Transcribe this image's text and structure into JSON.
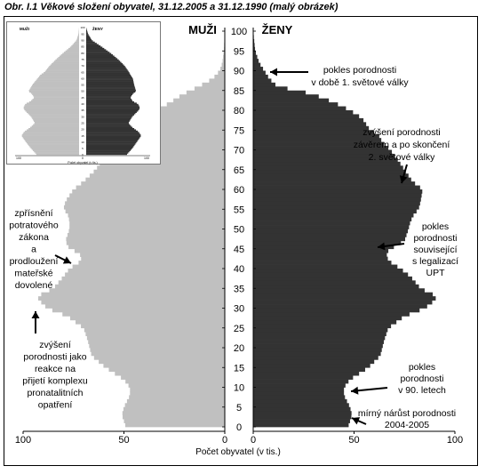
{
  "title": "Obr. I.1 Věkové složení obyvatel, 31.12.2005 a 31.12.1990 (malý obrázek)",
  "colors": {
    "men": "#c0c0c0",
    "women": "#333333",
    "text": "#000000"
  },
  "chart_data": [
    {
      "type": "population-pyramid",
      "title": "",
      "left_group": "MUŽI",
      "right_group": "ŽENY",
      "xlabel": "Počet obyvatel (v tis.)",
      "x_ticks_left": [
        100,
        50,
        0
      ],
      "x_ticks_right": [
        0,
        50,
        100
      ],
      "xlim": [
        0,
        100
      ],
      "y_ticks": [
        0,
        5,
        10,
        15,
        20,
        25,
        30,
        35,
        40,
        45,
        50,
        55,
        60,
        65,
        70,
        75,
        80,
        85,
        90,
        95,
        100
      ],
      "ylim": [
        0,
        100
      ],
      "age_anchors": [
        0,
        3,
        5,
        8,
        10,
        12,
        15,
        18,
        22,
        25,
        28,
        30,
        32,
        33,
        35,
        38,
        40,
        42,
        44,
        45,
        47,
        50,
        52,
        54,
        55,
        57,
        60,
        62,
        65,
        68,
        70,
        72,
        74,
        75,
        78,
        80,
        82,
        84,
        85,
        86,
        88,
        90,
        92,
        95,
        100
      ],
      "men_values": [
        49,
        51,
        50,
        47,
        47,
        50,
        59,
        66,
        68,
        70,
        78,
        88,
        92,
        93,
        85,
        80,
        77,
        71,
        72,
        77,
        79,
        77,
        77,
        78,
        80,
        79,
        75,
        70,
        64,
        60,
        57,
        54,
        51,
        48,
        42,
        34,
        27,
        21,
        17,
        13,
        6,
        2.5,
        1.2,
        0.5,
        0
      ],
      "women_values": [
        47,
        49,
        48,
        45,
        45,
        48,
        57,
        63,
        65,
        67,
        75,
        85,
        90,
        91,
        83,
        78,
        73,
        67,
        66,
        68,
        75,
        77,
        78,
        80,
        82,
        83,
        84,
        79,
        75,
        71,
        68,
        64,
        62,
        58,
        54,
        48,
        40,
        30,
        22,
        12,
        8,
        5.5,
        3,
        1,
        0
      ]
    },
    {
      "type": "population-pyramid",
      "title": "",
      "left_group": "MUŽI",
      "right_group": "ŽENY",
      "xlabel": "Počet obyvatel (v tis.)",
      "x_ticks": [
        "100",
        "0",
        "100"
      ],
      "age_anchors": [
        0,
        5,
        10,
        15,
        18,
        22,
        25,
        30,
        35,
        37,
        40,
        42,
        45,
        48,
        50,
        55,
        60,
        63,
        65,
        70,
        75,
        80,
        85,
        90,
        95,
        100
      ],
      "men_values": [
        66,
        75,
        83,
        90,
        86,
        75,
        69,
        75,
        85,
        87,
        84,
        76,
        70,
        74,
        79,
        73,
        65,
        60,
        54,
        46,
        36,
        25,
        13,
        4,
        1,
        0
      ],
      "women_values": [
        63,
        72,
        79,
        86,
        82,
        71,
        66,
        72,
        82,
        84,
        81,
        73,
        69,
        73,
        78,
        75,
        73,
        69,
        67,
        60,
        50,
        38,
        24,
        9,
        3,
        0
      ]
    }
  ],
  "annotations": [
    {
      "id": "ww1",
      "lines": [
        "pokles porodnosti",
        "v době 1. světové války"
      ]
    },
    {
      "id": "ww2",
      "lines": [
        "zvýšení porodnosti",
        "závěrem a po skončení",
        "2. světové války"
      ]
    },
    {
      "id": "upt",
      "lines": [
        "pokles",
        "porodnosti",
        "související",
        "s legalizací",
        "UPT"
      ]
    },
    {
      "id": "nineties",
      "lines": [
        "pokles",
        "porodnosti",
        "v 90. letech"
      ]
    },
    {
      "id": "recent",
      "lines": [
        "mírný nárůst porodnosti",
        "2004-2005"
      ]
    },
    {
      "id": "abortion-law",
      "lines": [
        "zpřísnění",
        "potratového",
        "zákona",
        "a",
        "prodloužení",
        "mateřské",
        "dovolené"
      ]
    },
    {
      "id": "pronatal",
      "lines": [
        "zvýšení",
        "porodnosti jako",
        "reakce na",
        "přijetí komplexu",
        "pronatalitních",
        "opatření"
      ]
    }
  ]
}
